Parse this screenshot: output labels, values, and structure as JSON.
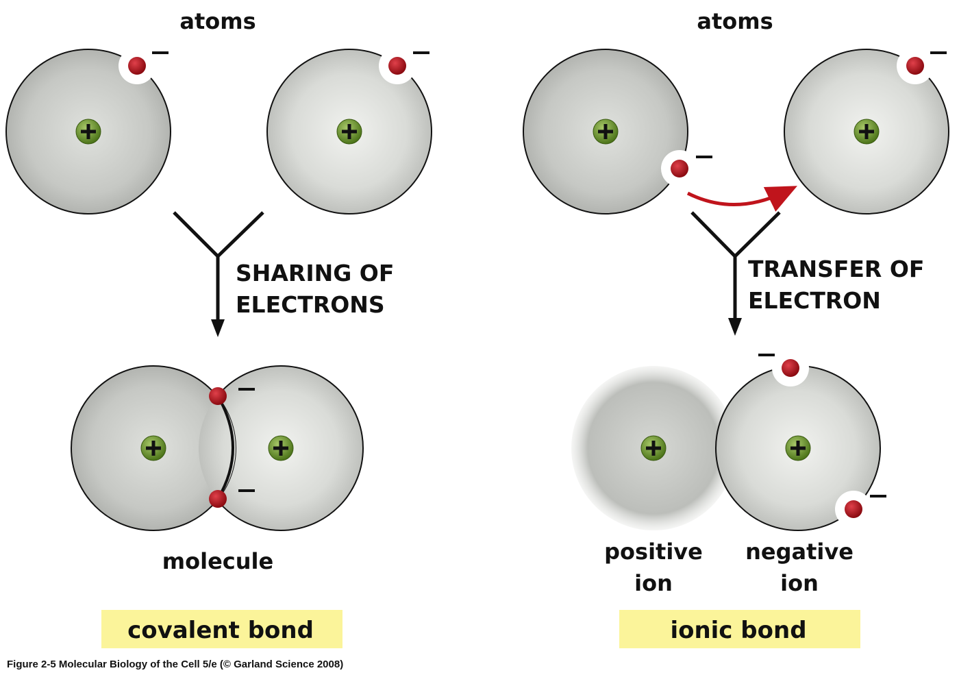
{
  "left": {
    "atoms_label": "atoms",
    "process_line1": "SHARING OF",
    "process_line2": "ELECTRONS",
    "product_label": "molecule",
    "bond_label": "covalent bond"
  },
  "right": {
    "atoms_label": "atoms",
    "process_line1": "TRANSFER OF",
    "process_line2": "ELECTRON",
    "positive_ion_line1": "positive",
    "positive_ion_line2": "ion",
    "negative_ion_line1": "negative",
    "negative_ion_line2": "ion",
    "bond_label": "ionic bond"
  },
  "symbols": {
    "nucleus": "+",
    "electron": "–"
  },
  "colors": {
    "bond_box": "#fbf49a",
    "electron": "#b5101a",
    "nucleus": "#6e9a2c",
    "transfer_arrow": "#c0141c",
    "atom_shell_edge": "#c2c4c0",
    "atom_shell_center": "#f1f2ef"
  },
  "caption": "Figure 2-5  Molecular Biology of the Cell 5/e (© Garland Science 2008)"
}
